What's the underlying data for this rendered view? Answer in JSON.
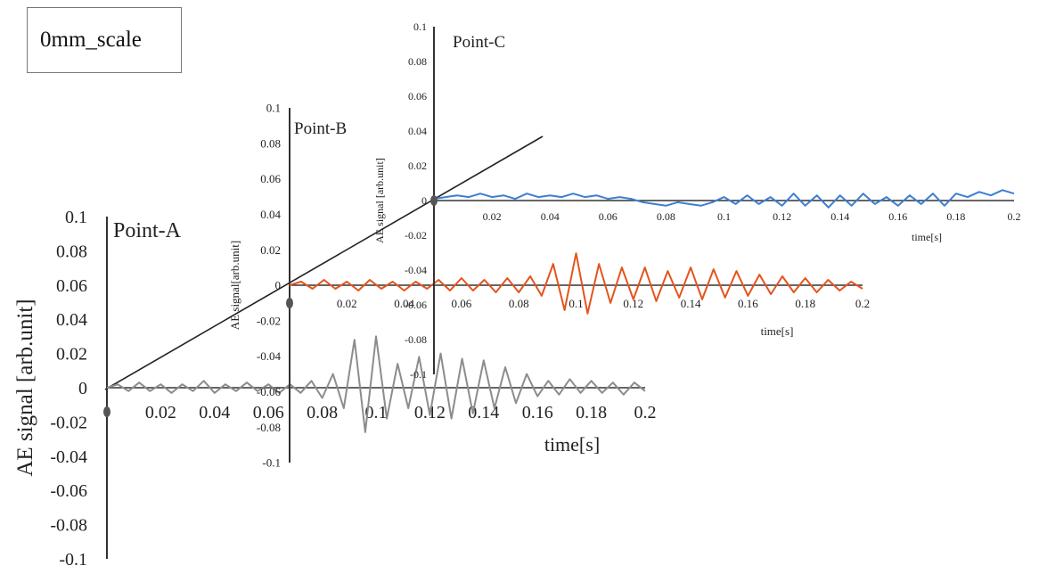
{
  "label_box": "0mm_scale",
  "colors": {
    "A": "#8c8c8c",
    "B": "#e5541c",
    "C": "#3d7fd1",
    "axis": "#333333",
    "diag": "#222222"
  },
  "chart_data": [
    {
      "type": "line",
      "point_label": "Point-A",
      "ylabel": "AE signal [arb.unit]",
      "xlabel": "time[s]",
      "xlim": [
        0,
        0.2
      ],
      "ylim": [
        -0.1,
        0.1
      ],
      "x_ticks": [
        "0.02",
        "0.04",
        "0.06",
        "0.08",
        "0.1",
        "0.12",
        "0.14",
        "0.16",
        "0.18",
        "0.2"
      ],
      "y_ticks": [
        "0.1",
        "0.08",
        "0.06",
        "0.04",
        "0.02",
        "0",
        "-0.02",
        "-0.04",
        "-0.06",
        "-0.08",
        "-0.1"
      ],
      "series": [
        {
          "x": [
            0,
            0.004,
            0.008,
            0.012,
            0.016,
            0.02,
            0.024,
            0.028,
            0.032,
            0.036,
            0.04,
            0.044,
            0.048,
            0.052,
            0.056,
            0.06,
            0.064,
            0.068,
            0.072,
            0.076,
            0.08,
            0.084,
            0.088,
            0.092,
            0.096,
            0.1,
            0.104,
            0.108,
            0.112,
            0.116,
            0.12,
            0.124,
            0.128,
            0.132,
            0.136,
            0.14,
            0.144,
            0.148,
            0.152,
            0.156,
            0.16,
            0.164,
            0.168,
            0.172,
            0.176,
            0.18,
            0.184,
            0.188,
            0.192,
            0.196,
            0.2
          ],
          "values": [
            0,
            0.002,
            -0.002,
            0.003,
            -0.002,
            0.002,
            -0.003,
            0.002,
            -0.002,
            0.004,
            -0.003,
            0.002,
            -0.002,
            0.003,
            -0.002,
            0.002,
            -0.003,
            0.002,
            -0.003,
            0.004,
            -0.006,
            0.008,
            -0.012,
            0.028,
            -0.026,
            0.03,
            -0.018,
            0.014,
            -0.012,
            0.018,
            -0.016,
            0.02,
            -0.018,
            0.017,
            -0.015,
            0.016,
            -0.012,
            0.012,
            -0.009,
            0.008,
            -0.005,
            0.004,
            -0.004,
            0.005,
            -0.003,
            0.004,
            -0.003,
            0.003,
            -0.004,
            0.003,
            -0.002
          ]
        }
      ]
    },
    {
      "type": "line",
      "point_label": "Point-B",
      "ylabel": "AE signal[arb.unit]",
      "xlabel": "time[s]",
      "xlim": [
        0,
        0.2
      ],
      "ylim": [
        -0.1,
        0.1
      ],
      "x_ticks": [
        "0.02",
        "0.04",
        "0.06",
        "0.08",
        "0.1",
        "0.12",
        "0.14",
        "0.16",
        "0.18",
        "0.2"
      ],
      "y_ticks": [
        "0.1",
        "0.08",
        "0.06",
        "0.04",
        "0.02",
        "0",
        "-0.02",
        "-0.04",
        "-0.06",
        "-0.08",
        "-0.1"
      ],
      "series": [
        {
          "x": [
            0,
            0.004,
            0.008,
            0.012,
            0.016,
            0.02,
            0.024,
            0.028,
            0.032,
            0.036,
            0.04,
            0.044,
            0.048,
            0.052,
            0.056,
            0.06,
            0.064,
            0.068,
            0.072,
            0.076,
            0.08,
            0.084,
            0.088,
            0.092,
            0.096,
            0.1,
            0.104,
            0.108,
            0.112,
            0.116,
            0.12,
            0.124,
            0.128,
            0.132,
            0.136,
            0.14,
            0.144,
            0.148,
            0.152,
            0.156,
            0.16,
            0.164,
            0.168,
            0.172,
            0.176,
            0.18,
            0.184,
            0.188,
            0.192,
            0.196,
            0.2
          ],
          "values": [
            0,
            0.002,
            -0.002,
            0.003,
            -0.002,
            0.002,
            -0.003,
            0.003,
            -0.002,
            0.002,
            -0.003,
            0.002,
            -0.002,
            0.003,
            -0.003,
            0.004,
            -0.003,
            0.003,
            -0.004,
            0.004,
            -0.004,
            0.005,
            -0.006,
            0.012,
            -0.014,
            0.018,
            -0.016,
            0.012,
            -0.01,
            0.01,
            -0.008,
            0.01,
            -0.009,
            0.008,
            -0.007,
            0.01,
            -0.008,
            0.009,
            -0.007,
            0.008,
            -0.006,
            0.006,
            -0.005,
            0.005,
            -0.004,
            0.004,
            -0.004,
            0.003,
            -0.003,
            0.002,
            -0.002
          ]
        }
      ]
    },
    {
      "type": "line",
      "point_label": "Point-C",
      "ylabel": "AE signal [arb.unit]",
      "xlabel": "time[s]",
      "xlim": [
        0,
        0.2
      ],
      "ylim": [
        -0.1,
        0.1
      ],
      "x_ticks": [
        "0.02",
        "0.04",
        "0.06",
        "0.08",
        "0.1",
        "0.12",
        "0.14",
        "0.16",
        "0.18",
        "0.2"
      ],
      "y_ticks": [
        "0.1",
        "0.08",
        "0.06",
        "0.04",
        "0.02",
        "0",
        "-0.02",
        "-0.04",
        "-0.06",
        "-0.08",
        "-0.1"
      ],
      "series": [
        {
          "x": [
            0,
            0.004,
            0.008,
            0.012,
            0.016,
            0.02,
            0.024,
            0.028,
            0.032,
            0.036,
            0.04,
            0.044,
            0.048,
            0.052,
            0.056,
            0.06,
            0.064,
            0.068,
            0.072,
            0.076,
            0.08,
            0.084,
            0.088,
            0.092,
            0.096,
            0.1,
            0.104,
            0.108,
            0.112,
            0.116,
            0.12,
            0.124,
            0.128,
            0.132,
            0.136,
            0.14,
            0.144,
            0.148,
            0.152,
            0.156,
            0.16,
            0.164,
            0.168,
            0.172,
            0.176,
            0.18,
            0.184,
            0.188,
            0.192,
            0.196,
            0.2
          ],
          "values": [
            0.001,
            0.002,
            0.003,
            0.002,
            0.004,
            0.002,
            0.003,
            0.001,
            0.004,
            0.002,
            0.003,
            0.002,
            0.004,
            0.002,
            0.003,
            0.001,
            0.002,
            0.001,
            -0.001,
            -0.002,
            -0.003,
            -0.001,
            -0.002,
            -0.003,
            -0.001,
            0.002,
            -0.002,
            0.003,
            -0.002,
            0.002,
            -0.003,
            0.004,
            -0.003,
            0.003,
            -0.004,
            0.003,
            -0.003,
            0.004,
            -0.002,
            0.002,
            -0.003,
            0.003,
            -0.002,
            0.004,
            -0.003,
            0.004,
            0.002,
            0.005,
            0.003,
            0.006,
            0.004
          ]
        }
      ]
    }
  ]
}
